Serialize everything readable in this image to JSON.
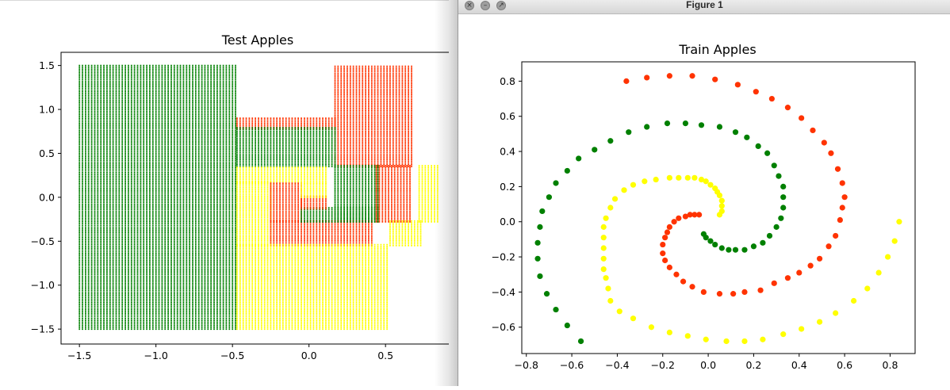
{
  "colors": {
    "green": "#008000",
    "red": "#ff3300",
    "yellow": "#ffff00"
  },
  "right_window": {
    "title": "Figure 1",
    "buttons": [
      {
        "name": "close-button",
        "icon": "close-icon",
        "glyph": "×"
      },
      {
        "name": "minimize-button",
        "icon": "minimize-icon",
        "glyph": "–"
      },
      {
        "name": "zoom-button",
        "icon": "zoom-icon",
        "glyph": "↗"
      }
    ]
  },
  "chart_data": [
    {
      "type": "scatter",
      "title": "Test Apples",
      "xlabel": "",
      "ylabel": "",
      "xlim": [
        -1.62,
        0.95
      ],
      "ylim": [
        -1.67,
        1.65
      ],
      "xticks": [
        -1.5,
        -1.0,
        -0.5,
        0.0,
        0.5
      ],
      "xtick_labels": [
        "−1.5",
        "−1.0",
        "−0.5",
        "0.0",
        "0.5"
      ],
      "yticks": [
        -1.5,
        -1.0,
        -0.5,
        0.0,
        0.5,
        1.0,
        1.5
      ],
      "ytick_labels": [
        "−1.5",
        "−1.0",
        "−0.5",
        "0.0",
        "0.5",
        "1.0",
        "1.5"
      ],
      "grid": false,
      "grid_step": 0.02,
      "regions": [
        {
          "color": "green",
          "x": [
            -1.5,
            -0.48
          ],
          "y": [
            -1.5,
            1.5
          ]
        },
        {
          "color": "red",
          "x": [
            0.17,
            0.66
          ],
          "y": [
            0.35,
            1.5
          ]
        },
        {
          "color": "red",
          "x": [
            -0.47,
            0.17
          ],
          "y": [
            0.78,
            0.9
          ]
        },
        {
          "color": "green",
          "x": [
            -0.47,
            0.17
          ],
          "y": [
            0.35,
            0.78
          ]
        },
        {
          "color": "red",
          "x": [
            0.44,
            0.66
          ],
          "y": [
            -0.28,
            0.35
          ]
        },
        {
          "color": "green",
          "x": [
            0.17,
            0.44
          ],
          "y": [
            -0.28,
            0.35
          ]
        },
        {
          "color": "yellow",
          "x": [
            -0.47,
            0.11
          ],
          "y": [
            0.16,
            0.35
          ]
        },
        {
          "color": "yellow",
          "x": [
            0.72,
            0.84
          ],
          "y": [
            -0.28,
            0.35
          ]
        },
        {
          "color": "yellow",
          "x": [
            -0.47,
            -0.25
          ],
          "y": [
            -0.55,
            0.16
          ]
        },
        {
          "color": "red",
          "x": [
            -0.25,
            0.4
          ],
          "y": [
            -0.55,
            -0.28
          ]
        },
        {
          "color": "red",
          "x": [
            -0.25,
            -0.05
          ],
          "y": [
            -0.28,
            0.16
          ]
        },
        {
          "color": "green",
          "x": [
            -0.05,
            0.44
          ],
          "y": [
            -0.28,
            -0.13
          ]
        },
        {
          "color": "red",
          "x": [
            -0.05,
            0.1
          ],
          "y": [
            -0.13,
            0.0
          ]
        },
        {
          "color": "yellow",
          "x": [
            -0.05,
            0.1
          ],
          "y": [
            0.0,
            0.16
          ]
        },
        {
          "color": "yellow",
          "x": [
            0.53,
            0.73
          ],
          "y": [
            -0.55,
            -0.28
          ]
        },
        {
          "color": "yellow",
          "x": [
            -0.47,
            0.5
          ],
          "y": [
            -1.5,
            -0.55
          ]
        }
      ]
    },
    {
      "type": "scatter",
      "title": "Train Apples",
      "xlabel": "",
      "ylabel": "",
      "xlim": [
        -0.82,
        0.91
      ],
      "ylim": [
        -0.75,
        0.91
      ],
      "xticks": [
        -0.8,
        -0.6,
        -0.4,
        -0.2,
        0.0,
        0.2,
        0.4,
        0.6,
        0.8
      ],
      "xtick_labels": [
        "−0.8",
        "−0.6",
        "−0.4",
        "−0.2",
        "0.0",
        "0.2",
        "0.4",
        "0.6",
        "0.8"
      ],
      "yticks": [
        -0.6,
        -0.4,
        -0.2,
        0.0,
        0.2,
        0.4,
        0.6,
        0.8
      ],
      "ytick_labels": [
        "−0.6",
        "−0.4",
        "−0.2",
        "0.0",
        "0.2",
        "0.4",
        "0.6",
        "0.8"
      ],
      "grid": false,
      "series": [
        {
          "color": "red",
          "points": [
            [
              -0.36,
              0.8
            ],
            [
              -0.27,
              0.82
            ],
            [
              -0.17,
              0.83
            ],
            [
              -0.07,
              0.83
            ],
            [
              0.03,
              0.81
            ],
            [
              0.13,
              0.78
            ],
            [
              0.21,
              0.74
            ],
            [
              0.28,
              0.7
            ],
            [
              0.35,
              0.65
            ],
            [
              0.41,
              0.59
            ],
            [
              0.46,
              0.52
            ],
            [
              0.51,
              0.45
            ],
            [
              0.54,
              0.39
            ],
            [
              0.57,
              0.3
            ],
            [
              0.59,
              0.22
            ],
            [
              0.6,
              0.14
            ],
            [
              0.59,
              0.08
            ],
            [
              0.58,
              0.01
            ],
            [
              0.56,
              -0.08
            ],
            [
              0.53,
              -0.14
            ],
            [
              0.49,
              -0.21
            ],
            [
              0.45,
              -0.25
            ],
            [
              0.4,
              -0.29
            ],
            [
              0.35,
              -0.32
            ],
            [
              0.29,
              -0.35
            ],
            [
              0.23,
              -0.39
            ],
            [
              0.16,
              -0.4
            ],
            [
              0.11,
              -0.41
            ],
            [
              0.05,
              -0.41
            ],
            [
              -0.02,
              -0.4
            ],
            [
              -0.07,
              -0.37
            ],
            [
              -0.11,
              -0.34
            ],
            [
              -0.14,
              -0.3
            ],
            [
              -0.17,
              -0.26
            ],
            [
              -0.19,
              -0.22
            ],
            [
              -0.2,
              -0.18
            ],
            [
              -0.2,
              -0.13
            ],
            [
              -0.19,
              -0.09
            ],
            [
              -0.18,
              -0.06
            ],
            [
              -0.17,
              -0.03
            ],
            [
              -0.15,
              0.0
            ],
            [
              -0.13,
              0.02
            ],
            [
              -0.1,
              0.03
            ],
            [
              -0.08,
              0.04
            ],
            [
              -0.06,
              0.04
            ],
            [
              -0.04,
              0.04
            ]
          ]
        },
        {
          "color": "green",
          "points": [
            [
              -0.56,
              -0.68
            ],
            [
              -0.62,
              -0.59
            ],
            [
              -0.67,
              -0.5
            ],
            [
              -0.71,
              -0.41
            ],
            [
              -0.74,
              -0.31
            ],
            [
              -0.75,
              -0.21
            ],
            [
              -0.75,
              -0.12
            ],
            [
              -0.74,
              -0.03
            ],
            [
              -0.73,
              0.06
            ],
            [
              -0.7,
              0.14
            ],
            [
              -0.67,
              0.22
            ],
            [
              -0.62,
              0.29
            ],
            [
              -0.57,
              0.36
            ],
            [
              -0.5,
              0.41
            ],
            [
              -0.43,
              0.46
            ],
            [
              -0.35,
              0.51
            ],
            [
              -0.27,
              0.54
            ],
            [
              -0.18,
              0.56
            ],
            [
              -0.1,
              0.56
            ],
            [
              -0.03,
              0.55
            ],
            [
              0.05,
              0.54
            ],
            [
              0.12,
              0.51
            ],
            [
              0.17,
              0.48
            ],
            [
              0.22,
              0.43
            ],
            [
              0.26,
              0.39
            ],
            [
              0.29,
              0.32
            ],
            [
              0.31,
              0.26
            ],
            [
              0.33,
              0.2
            ],
            [
              0.33,
              0.14
            ],
            [
              0.33,
              0.08
            ],
            [
              0.32,
              0.02
            ],
            [
              0.3,
              -0.03
            ],
            [
              0.27,
              -0.08
            ],
            [
              0.24,
              -0.12
            ],
            [
              0.2,
              -0.14
            ],
            [
              0.16,
              -0.16
            ],
            [
              0.12,
              -0.16
            ],
            [
              0.09,
              -0.16
            ],
            [
              0.06,
              -0.15
            ],
            [
              0.03,
              -0.13
            ],
            [
              0.01,
              -0.11
            ],
            [
              -0.01,
              -0.09
            ],
            [
              -0.02,
              -0.07
            ]
          ]
        },
        {
          "color": "yellow",
          "points": [
            [
              0.84,
              0.0
            ],
            [
              0.82,
              -0.11
            ],
            [
              0.79,
              -0.2
            ],
            [
              0.75,
              -0.29
            ],
            [
              0.7,
              -0.38
            ],
            [
              0.64,
              -0.45
            ],
            [
              0.56,
              -0.52
            ],
            [
              0.49,
              -0.57
            ],
            [
              0.41,
              -0.61
            ],
            [
              0.33,
              -0.64
            ],
            [
              0.24,
              -0.67
            ],
            [
              0.16,
              -0.68
            ],
            [
              0.08,
              -0.68
            ],
            [
              -0.01,
              -0.67
            ],
            [
              -0.09,
              -0.65
            ],
            [
              -0.17,
              -0.63
            ],
            [
              -0.25,
              -0.6
            ],
            [
              -0.33,
              -0.55
            ],
            [
              -0.39,
              -0.51
            ],
            [
              -0.43,
              -0.45
            ],
            [
              -0.44,
              -0.38
            ],
            [
              -0.45,
              -0.32
            ],
            [
              -0.46,
              -0.27
            ],
            [
              -0.46,
              -0.21
            ],
            [
              -0.46,
              -0.15
            ],
            [
              -0.46,
              -0.09
            ],
            [
              -0.46,
              -0.03
            ],
            [
              -0.45,
              0.02
            ],
            [
              -0.43,
              0.08
            ],
            [
              -0.41,
              0.13
            ],
            [
              -0.37,
              0.18
            ],
            [
              -0.33,
              0.21
            ],
            [
              -0.28,
              0.23
            ],
            [
              -0.23,
              0.24
            ],
            [
              -0.17,
              0.25
            ],
            [
              -0.13,
              0.25
            ],
            [
              -0.09,
              0.25
            ],
            [
              -0.06,
              0.25
            ],
            [
              -0.03,
              0.24
            ],
            [
              -0.01,
              0.23
            ],
            [
              0.01,
              0.21
            ],
            [
              0.03,
              0.19
            ],
            [
              0.04,
              0.17
            ],
            [
              0.05,
              0.15
            ],
            [
              0.06,
              0.12
            ],
            [
              0.06,
              0.09
            ],
            [
              0.06,
              0.06
            ],
            [
              0.05,
              0.04
            ]
          ]
        }
      ]
    }
  ]
}
